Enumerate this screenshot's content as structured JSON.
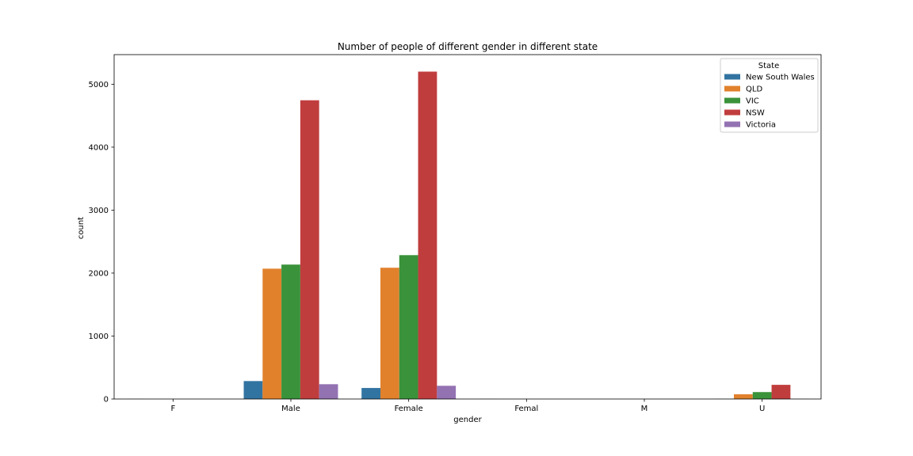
{
  "chart_data": {
    "type": "bar",
    "title": "Number of people of different gender in different state",
    "xlabel": "gender",
    "ylabel": "count",
    "categories": [
      "F",
      "Male",
      "Female",
      "Femal",
      "M",
      "U"
    ],
    "ylim": [
      0,
      5470
    ],
    "yticks": [
      0,
      1000,
      2000,
      3000,
      4000,
      5000
    ],
    "legend": {
      "title": "State",
      "placement": "top-right"
    },
    "series": [
      {
        "name": "New South Wales",
        "color": "#3274a1",
        "values": [
          1,
          285,
          175,
          1,
          0,
          2
        ]
      },
      {
        "name": "QLD",
        "color": "#e1812c",
        "values": [
          0,
          2070,
          2085,
          0,
          0,
          75
        ]
      },
      {
        "name": "VIC",
        "color": "#3a923a",
        "values": [
          0,
          2135,
          2285,
          0,
          0,
          110
        ]
      },
      {
        "name": "NSW",
        "color": "#c03d3e",
        "values": [
          0,
          4745,
          5200,
          0,
          0,
          225
        ]
      },
      {
        "name": "Victoria",
        "color": "#9372b2",
        "values": [
          0,
          235,
          210,
          0,
          0,
          2
        ]
      }
    ]
  }
}
